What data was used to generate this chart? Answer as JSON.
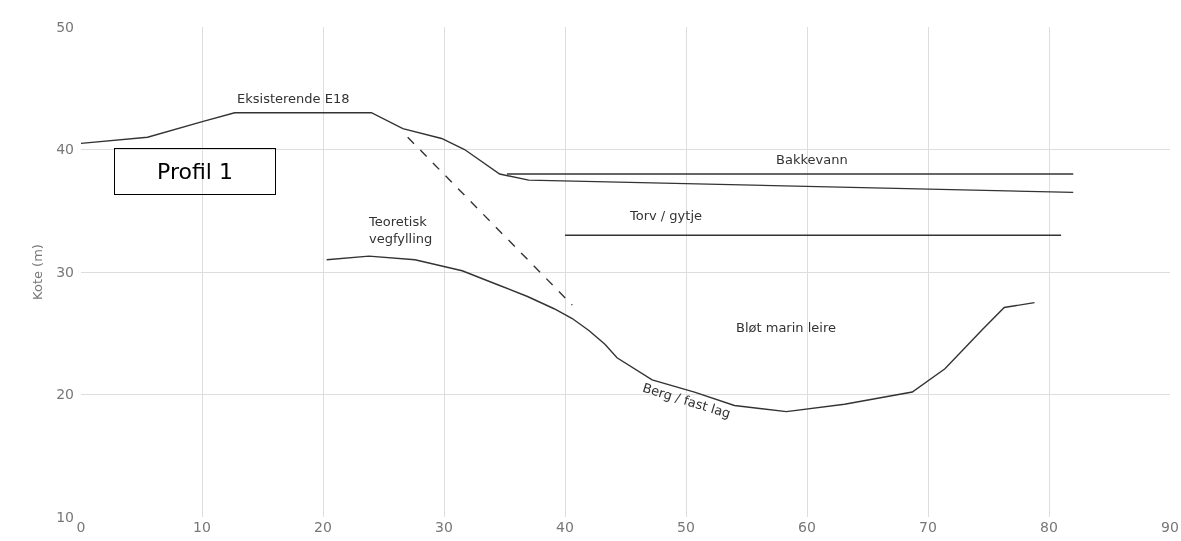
{
  "chart_data": {
    "type": "line",
    "title": "Profil 1",
    "ylabel": "Kote (m)",
    "xlim": [
      0,
      90
    ],
    "ylim": [
      10,
      50
    ],
    "xticks": [
      0,
      10,
      20,
      30,
      40,
      50,
      60,
      70,
      80,
      90
    ],
    "yticks": [
      10,
      20,
      30,
      40,
      50
    ],
    "grid": true,
    "marker": "none",
    "line_style": "solid",
    "series": [
      {
        "color": "#333333",
        "x": [
          0,
          5.5,
          10.1,
          12.7,
          24.0,
          26.6,
          29.8,
          31.7,
          34.6,
          37.0,
          82
        ],
        "values": [
          40.5,
          41.0,
          42.3,
          43.0,
          43.0,
          41.7,
          40.9,
          40.0,
          38.0,
          37.5,
          36.5
        ]
      },
      {
        "color": "#333333",
        "x": [
          35.2,
          82
        ],
        "values": [
          38.0,
          38.0
        ]
      },
      {
        "color": "#333333",
        "x": [
          40,
          81
        ],
        "values": [
          33,
          33
        ]
      },
      {
        "color": "#333333",
        "line_style": "dashed",
        "x": [
          27.0,
          40.6
        ],
        "values": [
          41.0,
          27.3
        ]
      },
      {
        "color": "#333333",
        "x": [
          20.3,
          23.8,
          27.6,
          31.5,
          34.6,
          36.9,
          39.1,
          40.6,
          42.0,
          43.3,
          44.3,
          47.2,
          50.7,
          54.0,
          58.3,
          63.1,
          68.7,
          71.4,
          74.5,
          76.3,
          78.8
        ],
        "values": [
          31.0,
          31.3,
          31.0,
          30.1,
          28.9,
          28.0,
          27.0,
          26.2,
          25.2,
          24.1,
          23.0,
          21.2,
          20.2,
          19.1,
          18.6,
          19.2,
          20.2,
          22.1,
          25.3,
          27.1,
          27.5
        ]
      }
    ],
    "annotations": [
      "Eksisterende E18",
      "Bakkevann",
      "Torv / gytje",
      "Teoretisk\nvegfylling",
      "Bløt marin leire",
      "Berg / fast lag"
    ]
  }
}
